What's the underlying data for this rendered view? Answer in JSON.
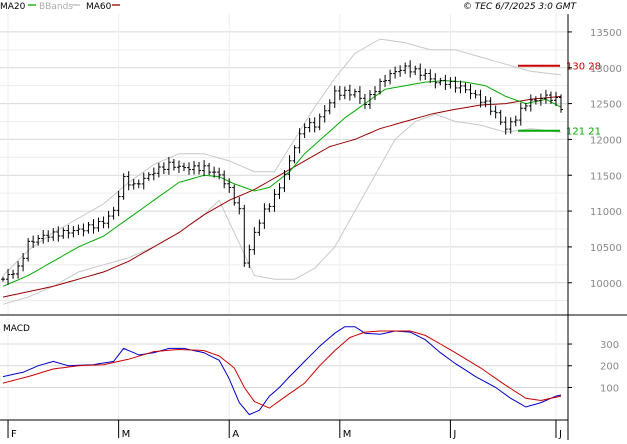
{
  "header": {
    "legend": [
      {
        "label": "MA20",
        "color": "#00aa00"
      },
      {
        "label": "BBands",
        "color": "#bbbbbb"
      },
      {
        "label": "MA60",
        "color": "#990000"
      }
    ],
    "copyright": "© TEC 6/7/2025 3:0 GMT"
  },
  "chart_data": [
    {
      "type": "ohlc",
      "price_axis": {
        "ylim": [
          9550,
          13750
        ],
        "ticks": [
          10000,
          10500,
          11000,
          11500,
          12000,
          12500,
          13000,
          13500
        ],
        "tick_labels": [
          "10000",
          "10500",
          "11000",
          "11500",
          "12000",
          "12500",
          "13000",
          "13500"
        ]
      },
      "time_axis": {
        "bars": 112,
        "month_labels": [
          {
            "label": "F",
            "index": 1
          },
          {
            "label": "M",
            "index": 23
          },
          {
            "label": "A",
            "index": 45
          },
          {
            "label": "M",
            "index": 67
          },
          {
            "label": "J",
            "index": 89
          },
          {
            "label": "J",
            "index": 110
          }
        ]
      },
      "indicators": [
        "MA20",
        "BBands",
        "MA60"
      ],
      "annotations": [
        {
          "label": "130 28",
          "value": 13028,
          "color": "#cc0000"
        },
        {
          "label": "121 21",
          "value": 12121,
          "color": "#00aa00"
        }
      ],
      "anchors": {
        "close": [
          [
            0,
            10050
          ],
          [
            3,
            10200
          ],
          [
            5,
            10550
          ],
          [
            8,
            10650
          ],
          [
            12,
            10700
          ],
          [
            16,
            10750
          ],
          [
            20,
            10850
          ],
          [
            22,
            11000
          ],
          [
            24,
            11450
          ],
          [
            26,
            11350
          ],
          [
            28,
            11450
          ],
          [
            30,
            11550
          ],
          [
            33,
            11650
          ],
          [
            36,
            11600
          ],
          [
            40,
            11600
          ],
          [
            43,
            11500
          ],
          [
            45,
            11300
          ],
          [
            47,
            11000
          ],
          [
            48,
            10300
          ],
          [
            49,
            10450
          ],
          [
            50,
            10700
          ],
          [
            52,
            11000
          ],
          [
            54,
            11200
          ],
          [
            56,
            11500
          ],
          [
            58,
            11900
          ],
          [
            60,
            12200
          ],
          [
            62,
            12200
          ],
          [
            64,
            12400
          ],
          [
            66,
            12650
          ],
          [
            68,
            12650
          ],
          [
            70,
            12650
          ],
          [
            72,
            12500
          ],
          [
            74,
            12700
          ],
          [
            76,
            12850
          ],
          [
            78,
            12950
          ],
          [
            80,
            13000
          ],
          [
            82,
            12950
          ],
          [
            84,
            12900
          ],
          [
            86,
            12800
          ],
          [
            88,
            12800
          ],
          [
            90,
            12750
          ],
          [
            92,
            12700
          ],
          [
            94,
            12600
          ],
          [
            96,
            12500
          ],
          [
            98,
            12350
          ],
          [
            100,
            12150
          ],
          [
            102,
            12300
          ],
          [
            104,
            12500
          ],
          [
            106,
            12550
          ],
          [
            108,
            12600
          ],
          [
            110,
            12550
          ],
          [
            111,
            12450
          ]
        ],
        "ma20": [
          [
            0,
            9950
          ],
          [
            5,
            10100
          ],
          [
            10,
            10300
          ],
          [
            15,
            10500
          ],
          [
            20,
            10650
          ],
          [
            25,
            10900
          ],
          [
            30,
            11150
          ],
          [
            35,
            11400
          ],
          [
            40,
            11500
          ],
          [
            43,
            11480
          ],
          [
            46,
            11380
          ],
          [
            50,
            11280
          ],
          [
            53,
            11330
          ],
          [
            57,
            11550
          ],
          [
            60,
            11800
          ],
          [
            64,
            12050
          ],
          [
            68,
            12300
          ],
          [
            72,
            12500
          ],
          [
            76,
            12700
          ],
          [
            80,
            12750
          ],
          [
            84,
            12800
          ],
          [
            88,
            12820
          ],
          [
            92,
            12800
          ],
          [
            96,
            12750
          ],
          [
            100,
            12600
          ],
          [
            104,
            12500
          ],
          [
            108,
            12560
          ],
          [
            111,
            12450
          ]
        ],
        "ma60": [
          [
            0,
            9800
          ],
          [
            10,
            9950
          ],
          [
            20,
            10150
          ],
          [
            25,
            10300
          ],
          [
            30,
            10500
          ],
          [
            35,
            10700
          ],
          [
            40,
            10950
          ],
          [
            45,
            11150
          ],
          [
            50,
            11300
          ],
          [
            55,
            11500
          ],
          [
            60,
            11700
          ],
          [
            65,
            11900
          ],
          [
            70,
            12000
          ],
          [
            75,
            12150
          ],
          [
            80,
            12250
          ],
          [
            85,
            12350
          ],
          [
            90,
            12420
          ],
          [
            95,
            12480
          ],
          [
            100,
            12500
          ],
          [
            105,
            12560
          ],
          [
            111,
            12600
          ]
        ],
        "bb_upper": [
          [
            0,
            10100
          ],
          [
            5,
            10450
          ],
          [
            10,
            10700
          ],
          [
            15,
            10900
          ],
          [
            20,
            11100
          ],
          [
            25,
            11400
          ],
          [
            30,
            11650
          ],
          [
            35,
            11800
          ],
          [
            40,
            11800
          ],
          [
            45,
            11700
          ],
          [
            50,
            11550
          ],
          [
            54,
            11550
          ],
          [
            58,
            12000
          ],
          [
            62,
            12450
          ],
          [
            66,
            12850
          ],
          [
            70,
            13200
          ],
          [
            75,
            13400
          ],
          [
            80,
            13350
          ],
          [
            85,
            13250
          ],
          [
            90,
            13250
          ],
          [
            95,
            13150
          ],
          [
            100,
            13050
          ],
          [
            105,
            12950
          ],
          [
            111,
            12900
          ]
        ],
        "bb_lower": [
          [
            0,
            9700
          ],
          [
            5,
            9800
          ],
          [
            10,
            9950
          ],
          [
            15,
            10150
          ],
          [
            20,
            10250
          ],
          [
            25,
            10350
          ],
          [
            30,
            10500
          ],
          [
            35,
            10700
          ],
          [
            40,
            10950
          ],
          [
            43,
            11150
          ],
          [
            46,
            10700
          ],
          [
            50,
            10100
          ],
          [
            54,
            10050
          ],
          [
            58,
            10050
          ],
          [
            62,
            10200
          ],
          [
            66,
            10500
          ],
          [
            70,
            11000
          ],
          [
            74,
            11500
          ],
          [
            78,
            12000
          ],
          [
            82,
            12250
          ],
          [
            86,
            12350
          ],
          [
            90,
            12250
          ],
          [
            95,
            12200
          ],
          [
            100,
            12100
          ],
          [
            105,
            12150
          ],
          [
            111,
            12100
          ]
        ]
      }
    },
    {
      "type": "line",
      "title": "MACD",
      "ylim": [
        -50,
        420
      ],
      "ticks": [
        100,
        200,
        300
      ],
      "tick_labels": [
        "100",
        "200",
        "300"
      ],
      "series": [
        {
          "color": "#0000cc",
          "points": [
            [
              0,
              150
            ],
            [
              4,
              170
            ],
            [
              7,
              200
            ],
            [
              10,
              220
            ],
            [
              13,
              200
            ],
            [
              18,
              205
            ],
            [
              22,
              220
            ],
            [
              24,
              280
            ],
            [
              27,
              250
            ],
            [
              30,
              260
            ],
            [
              33,
              280
            ],
            [
              36,
              280
            ],
            [
              40,
              260
            ],
            [
              43,
              225
            ],
            [
              45,
              140
            ],
            [
              47,
              30
            ],
            [
              49,
              -25
            ],
            [
              51,
              -5
            ],
            [
              53,
              60
            ],
            [
              55,
              100
            ],
            [
              57,
              150
            ],
            [
              60,
              220
            ],
            [
              63,
              290
            ],
            [
              66,
              350
            ],
            [
              68,
              380
            ],
            [
              70,
              380
            ],
            [
              72,
              350
            ],
            [
              75,
              345
            ],
            [
              78,
              360
            ],
            [
              81,
              355
            ],
            [
              84,
              320
            ],
            [
              87,
              260
            ],
            [
              90,
              210
            ],
            [
              94,
              150
            ],
            [
              98,
              100
            ],
            [
              101,
              50
            ],
            [
              104,
              10
            ],
            [
              107,
              30
            ],
            [
              110,
              60
            ],
            [
              111,
              65
            ]
          ]
        },
        {
          "color": "#cc0000",
          "points": [
            [
              0,
              120
            ],
            [
              5,
              150
            ],
            [
              10,
              185
            ],
            [
              15,
              200
            ],
            [
              20,
              205
            ],
            [
              25,
              230
            ],
            [
              30,
              265
            ],
            [
              35,
              275
            ],
            [
              40,
              270
            ],
            [
              43,
              245
            ],
            [
              46,
              190
            ],
            [
              48,
              100
            ],
            [
              50,
              35
            ],
            [
              53,
              5
            ],
            [
              56,
              55
            ],
            [
              60,
              120
            ],
            [
              63,
              200
            ],
            [
              66,
              270
            ],
            [
              69,
              330
            ],
            [
              72,
              355
            ],
            [
              75,
              360
            ],
            [
              78,
              360
            ],
            [
              81,
              360
            ],
            [
              84,
              340
            ],
            [
              87,
              300
            ],
            [
              90,
              260
            ],
            [
              95,
              190
            ],
            [
              100,
              110
            ],
            [
              104,
              50
            ],
            [
              107,
              40
            ],
            [
              110,
              55
            ],
            [
              111,
              60
            ]
          ]
        }
      ]
    }
  ]
}
